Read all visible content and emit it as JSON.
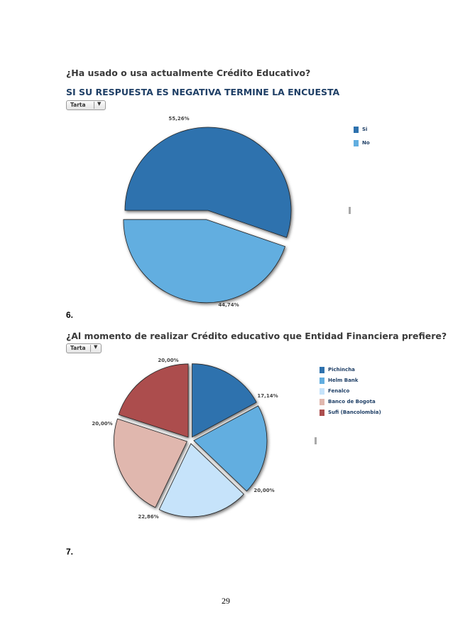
{
  "chart1": {
    "question": "¿Ha usado o usa actualmente Crédito Educativo?",
    "subtitle": "SI SU RESPUESTA ES NEGATIVA TERMINE LA ENCUESTA",
    "dropdown_label": "Tarta"
  },
  "section_after_chart1": "6.",
  "chart2": {
    "question": "¿Al momento de realizar Crédito educativo que Entidad Financiera prefiere?",
    "dropdown_label": "Tarta"
  },
  "section_after_chart2": "7.",
  "page_number": "29",
  "chart_data": [
    {
      "type": "pie",
      "title": "¿Ha usado o usa actualmente Crédito Educativo?",
      "legend_position": "right",
      "categories": [
        "Si",
        "No"
      ],
      "values": [
        55.26,
        44.74
      ],
      "labels": [
        "55,26%",
        "44,74%"
      ],
      "colors": [
        "#2e72ae",
        "#62aee0"
      ],
      "exploded": [
        false,
        true
      ]
    },
    {
      "type": "pie",
      "title": "¿Al momento de realizar Crédito educativo que Entidad Financiera prefiere?",
      "legend_position": "right",
      "categories": [
        "Pichincha",
        "Helm Bank",
        "Fenalco",
        "Banco de Bogota",
        "Sufi (Bancolombia)"
      ],
      "values": [
        17.14,
        20.0,
        20.0,
        22.86,
        20.0
      ],
      "labels": [
        "17,14%",
        "20,00%",
        "20,00%",
        "22,86%",
        "20,00%"
      ],
      "colors": [
        "#2e72ae",
        "#62aee0",
        "#c6e3fa",
        "#e0b7ae",
        "#ac4e4e"
      ],
      "exploded": [
        true,
        true,
        true,
        true,
        true
      ]
    }
  ]
}
